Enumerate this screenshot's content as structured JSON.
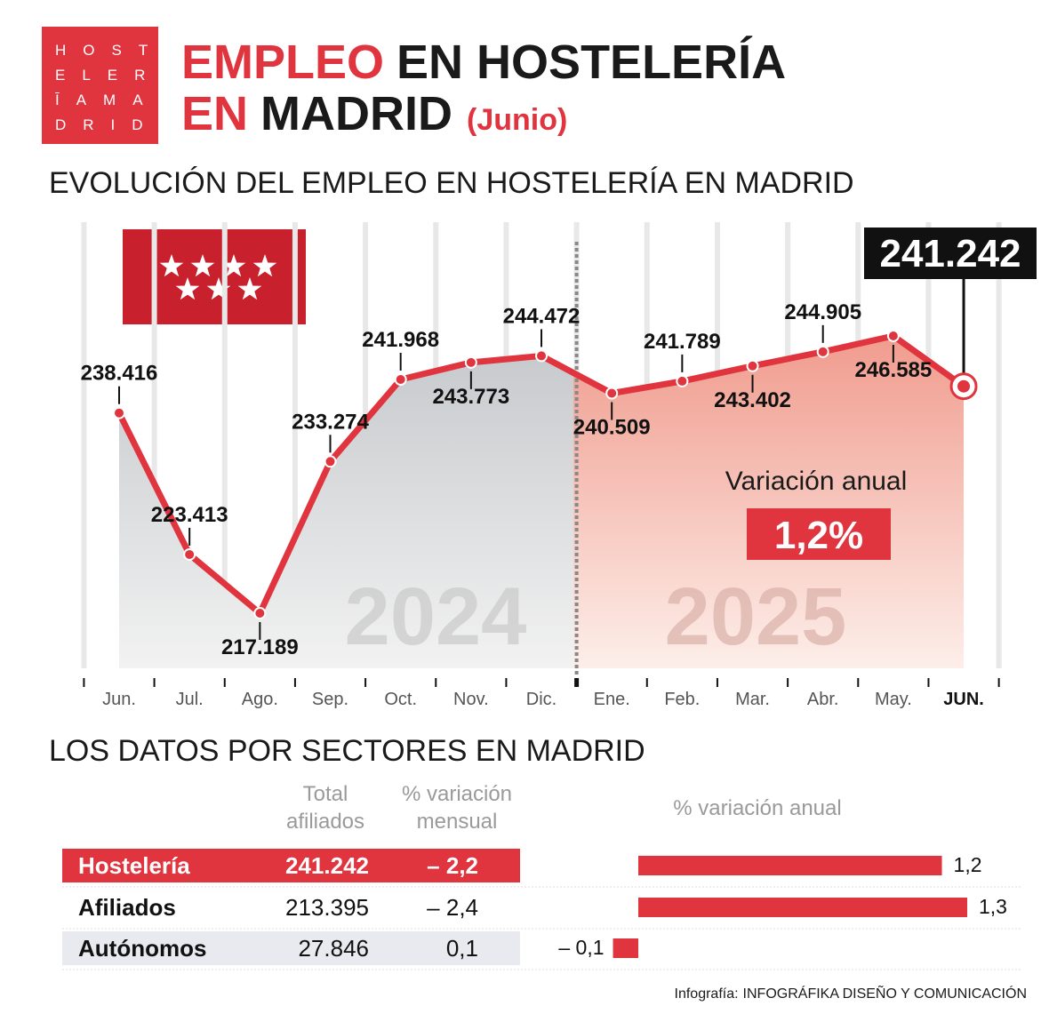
{
  "header": {
    "logo": [
      "HOST",
      "ELER",
      "ĪAMA",
      "DRID"
    ],
    "title": [
      "EMPLEO",
      "EN HOSTELERÍA",
      "EN",
      "MADRID",
      "(Junio)"
    ]
  },
  "chart_data": [
    {
      "type": "line",
      "title": "EVOLUCIÓN DEL EMPLEO EN HOSTELERÍA EN MADRID",
      "categories": [
        "Jun.",
        "Jul.",
        "Ago.",
        "Sep.",
        "Oct.",
        "Nov.",
        "Dic.",
        "Ene.",
        "Feb.",
        "Mar.",
        "Abr.",
        "May.",
        "JUN."
      ],
      "values": [
        238416,
        223413,
        217189,
        233274,
        241968,
        243773,
        244472,
        240509,
        241789,
        243402,
        244905,
        246585,
        241242
      ],
      "value_labels": [
        "238.416",
        "223.413",
        "217.189",
        "233.274",
        "241.968",
        "243.773",
        "244.472",
        "240.509",
        "241.789",
        "243.402",
        "244.905",
        "246.585",
        "241.242"
      ],
      "color": "#e0343f",
      "annotations": [
        "2024",
        "2025",
        "Variación anual",
        "1,2%"
      ]
    },
    {
      "type": "bar",
      "title": "LOS DATOS POR SECTORES EN MADRID",
      "value_axis_label": "% variación anual",
      "categories": [
        "Hostelería",
        "Afiliados",
        "Autónomos"
      ],
      "values": [
        1.2,
        1.3,
        -0.1
      ],
      "value_labels": [
        "1,2",
        "1,3",
        "– 0,1"
      ],
      "color": "#e0343f"
    }
  ],
  "table": {
    "headers": [
      [
        "Total",
        "afiliados"
      ],
      [
        "% variación",
        "mensual"
      ]
    ],
    "rows": [
      [
        "241.242",
        "– 2,2"
      ],
      [
        "213.395",
        "– 2,4"
      ],
      [
        "27.846",
        "0,1"
      ]
    ]
  },
  "credit": {
    "label": "Infografía:",
    "source": "INFOGRÁFIKA DISEÑO Y COMUNICACIÓN"
  }
}
